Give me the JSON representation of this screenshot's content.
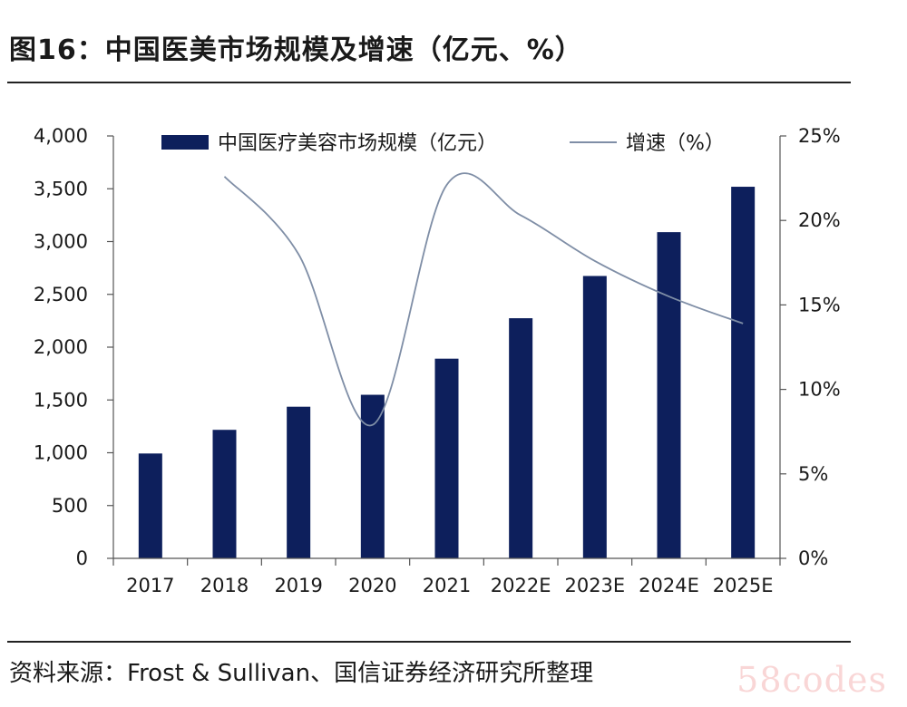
{
  "figure_title": "图16：中国医美市场规模及增速（亿元、%）",
  "source_note": "资料来源：Frost & Sullivan、国信证券经济研究所整理",
  "watermark": "58codes",
  "chart_data": {
    "type": "bar",
    "categories": [
      "2017",
      "2018",
      "2019",
      "2020",
      "2021",
      "2022E",
      "2023E",
      "2024E",
      "2025E"
    ],
    "series": [
      {
        "name": "中国医疗美容市场规模（亿元）",
        "type": "bar",
        "axis": "left",
        "color": "#0d1f5c",
        "values": [
          993,
          1217,
          1436,
          1549,
          1891,
          2274,
          2674,
          3089,
          3519
        ]
      },
      {
        "name": "增速（%）",
        "type": "line",
        "axis": "right",
        "color": "#7f8ea6",
        "values": [
          null,
          22.6,
          18.0,
          7.9,
          22.1,
          20.3,
          17.6,
          15.5,
          13.9
        ]
      }
    ],
    "left_axis": {
      "min": 0,
      "max": 4000,
      "ticks": [
        0,
        500,
        1000,
        1500,
        2000,
        2500,
        3000,
        3500,
        4000
      ],
      "tick_labels": [
        "0",
        "500",
        "1,000",
        "1,500",
        "2,000",
        "2,500",
        "3,000",
        "3,500",
        "4,000"
      ]
    },
    "right_axis": {
      "min": 0,
      "max": 25,
      "ticks": [
        0,
        5,
        10,
        15,
        20,
        25
      ],
      "tick_labels": [
        "0%",
        "5%",
        "10%",
        "15%",
        "20%",
        "25%"
      ]
    },
    "legend_position": "top",
    "grid": false
  }
}
